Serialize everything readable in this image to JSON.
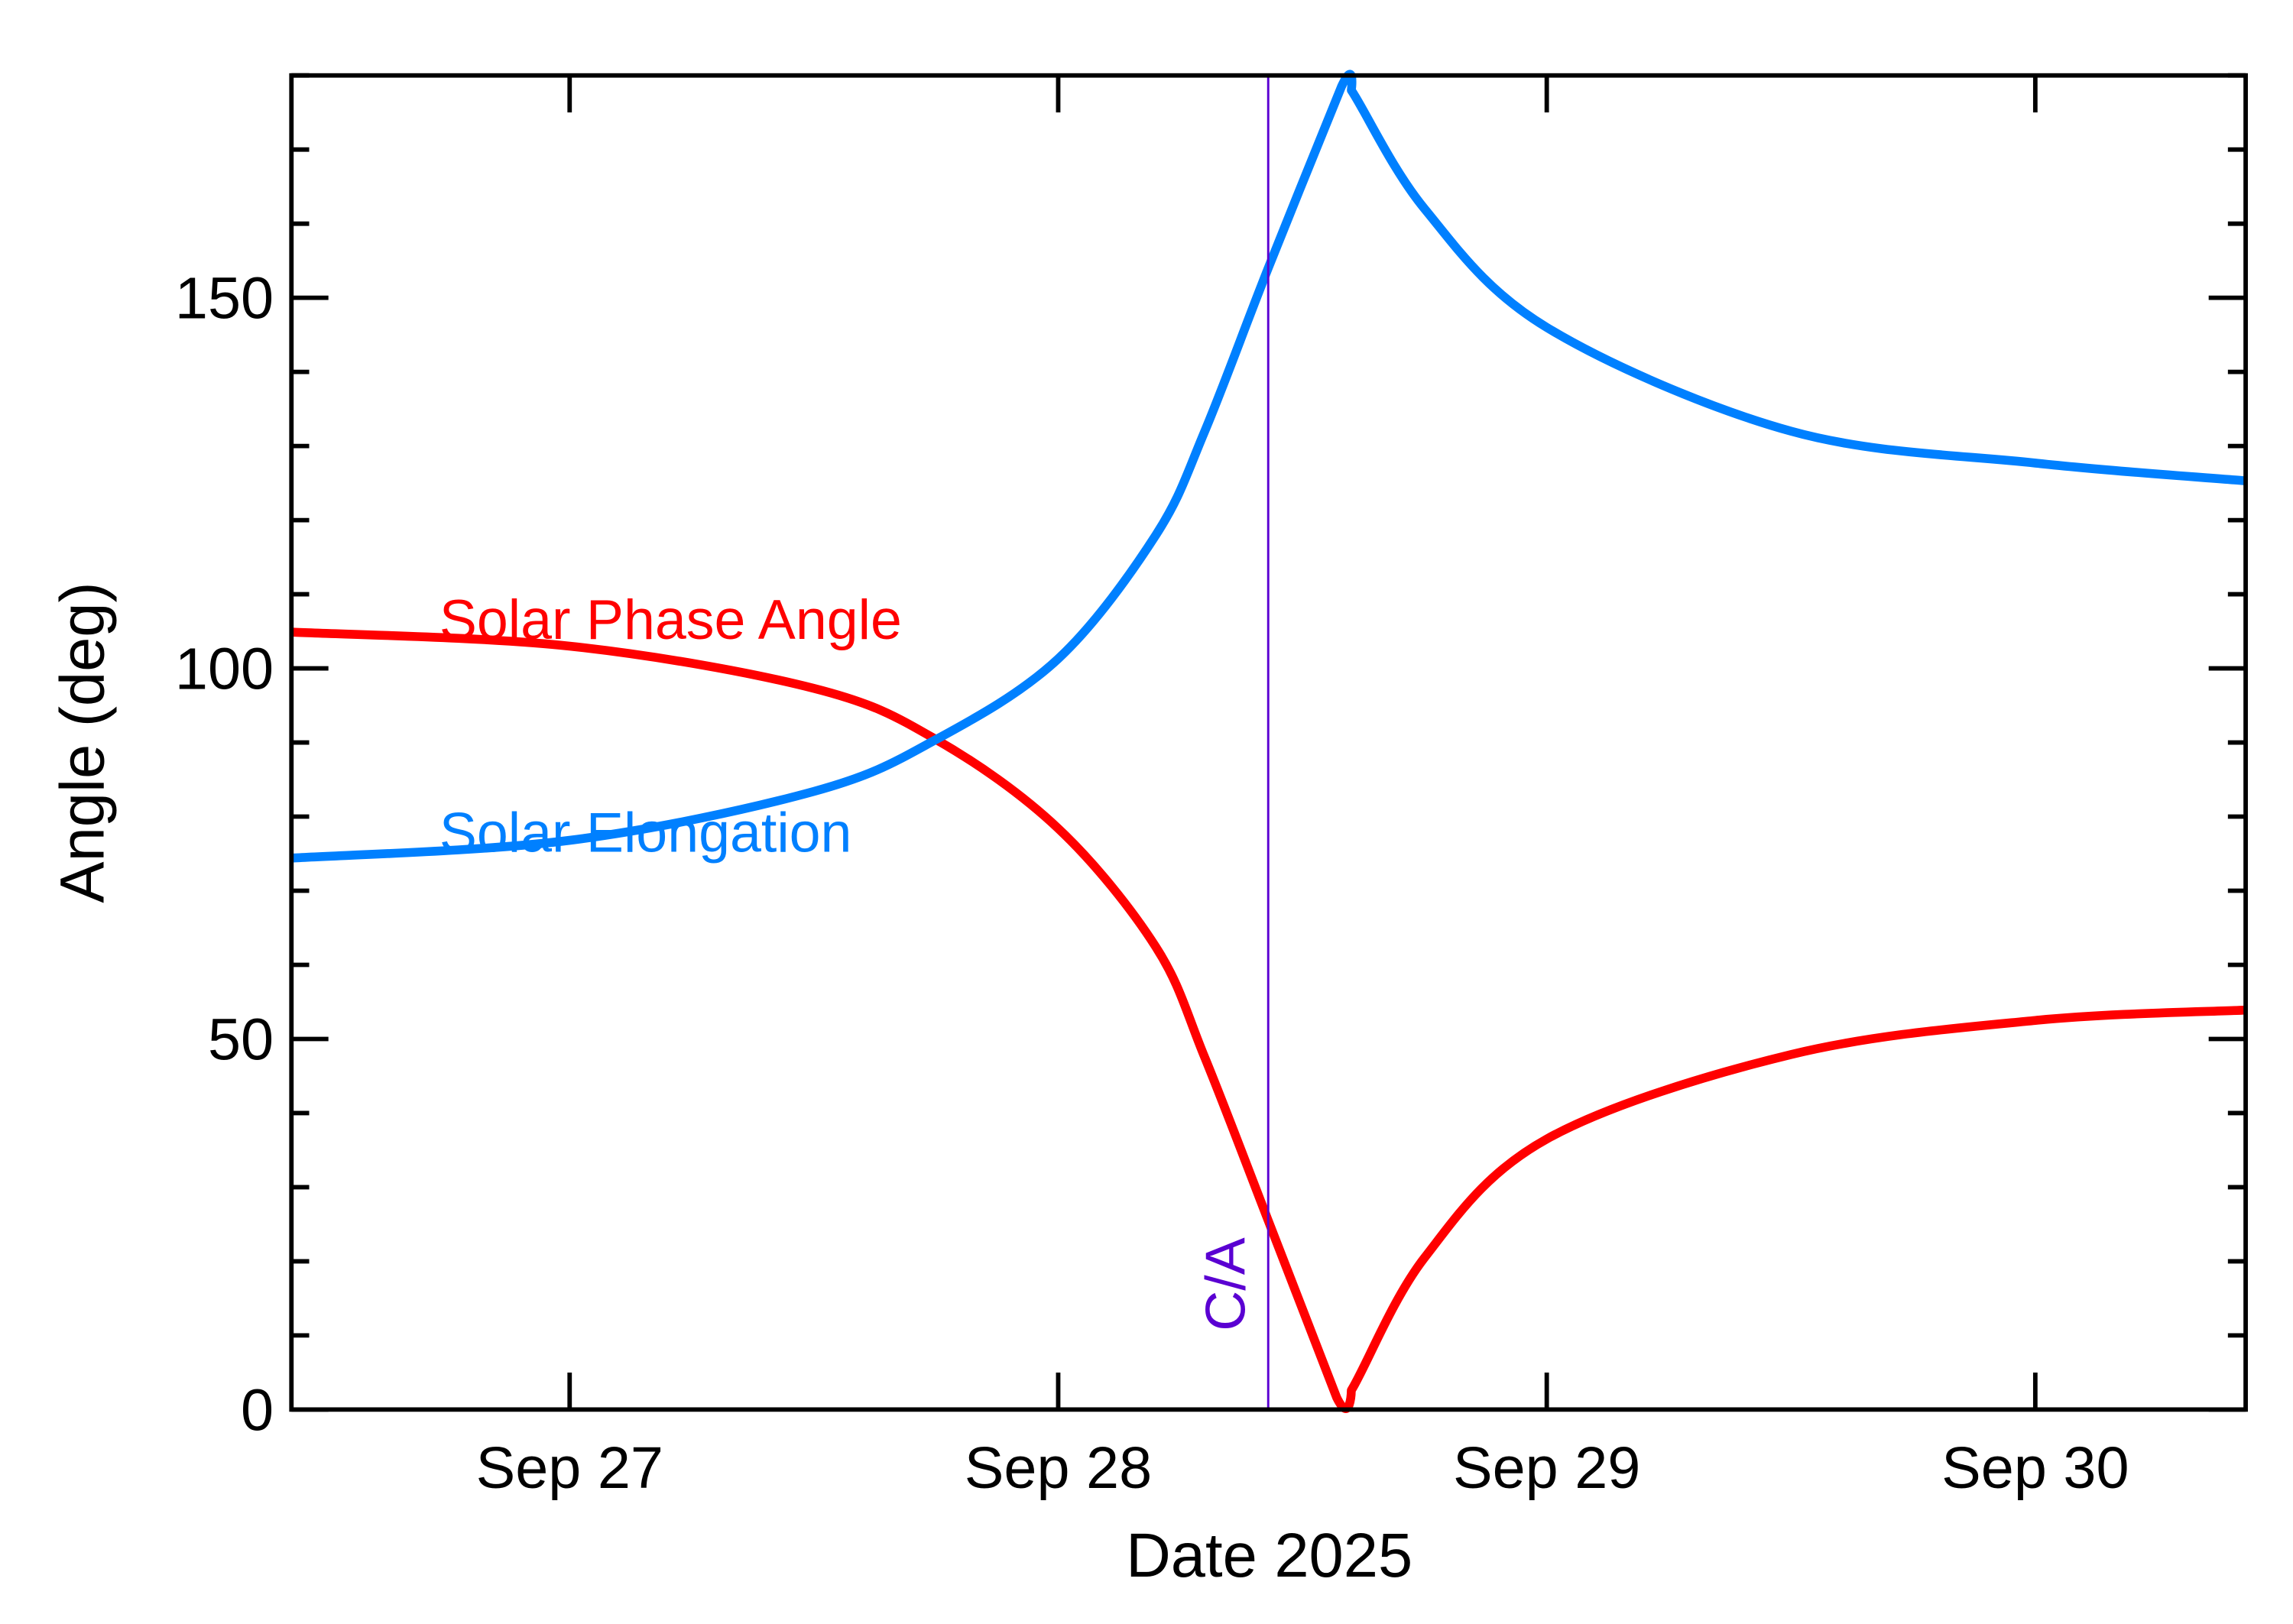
{
  "chart_data": {
    "type": "line",
    "title": "",
    "xlabel": "Date 2025",
    "ylabel": "Angle (deg)",
    "xlim": [
      "2025-09-26T10:20",
      "2025-09-30T10:20"
    ],
    "ylim": [
      0,
      180
    ],
    "x_ticks": [
      {
        "date": "2025-09-27T00:00",
        "label": "Sep 27"
      },
      {
        "date": "2025-09-28T00:00",
        "label": "Sep 28"
      },
      {
        "date": "2025-09-29T00:00",
        "label": "Sep 29"
      },
      {
        "date": "2025-09-30T00:00",
        "label": "Sep 30"
      }
    ],
    "y_ticks": [
      0,
      50,
      100,
      150
    ],
    "y_tick_labels": [
      "0",
      "50",
      "100",
      "150"
    ],
    "grid": false,
    "legend": "inline labels, upper-left",
    "annotation": {
      "label": "C/A",
      "date": "2025-09-28T10:19",
      "color": "#5a00d2"
    },
    "series": [
      {
        "name": "Solar Phase Angle",
        "color": "#ff0000",
        "points": [
          [
            "2025-09-26T10:20",
            104.9
          ],
          [
            "2025-09-27T00:00",
            103.0
          ],
          [
            "2025-09-27T12:00",
            97.3
          ],
          [
            "2025-09-27T18:00",
            90.4
          ],
          [
            "2025-09-28T00:00",
            78.4
          ],
          [
            "2025-09-28T04:48",
            62.4
          ],
          [
            "2025-09-28T07:12",
            47.5
          ],
          [
            "2025-09-28T10:19",
            25.5
          ],
          [
            "2025-09-28T13:41",
            1.6
          ],
          [
            "2025-09-28T14:24",
            2.6
          ],
          [
            "2025-09-28T18:00",
            20.5
          ],
          [
            "2025-09-29T00:00",
            36.5
          ],
          [
            "2025-09-29T12:00",
            47.9
          ],
          [
            "2025-09-30T00:00",
            52.5
          ],
          [
            "2025-09-30T10:20",
            53.9
          ]
        ]
      },
      {
        "name": "Solar Elongation",
        "color": "#0080ff",
        "points": [
          [
            "2025-09-26T10:20",
            74.4
          ],
          [
            "2025-09-27T00:00",
            76.8
          ],
          [
            "2025-09-27T12:00",
            83.4
          ],
          [
            "2025-09-27T18:00",
            90.4
          ],
          [
            "2025-09-28T00:00",
            101.3
          ],
          [
            "2025-09-28T04:48",
            118.0
          ],
          [
            "2025-09-28T07:12",
            132.0
          ],
          [
            "2025-09-28T10:19",
            154.0
          ],
          [
            "2025-09-28T13:55",
            178.5
          ],
          [
            "2025-09-28T14:24",
            178.0
          ],
          [
            "2025-09-28T18:00",
            162.0
          ],
          [
            "2025-09-29T00:00",
            146.0
          ],
          [
            "2025-09-29T12:00",
            132.0
          ],
          [
            "2025-09-30T00:00",
            127.7
          ],
          [
            "2025-09-30T10:20",
            125.3
          ]
        ]
      }
    ]
  }
}
